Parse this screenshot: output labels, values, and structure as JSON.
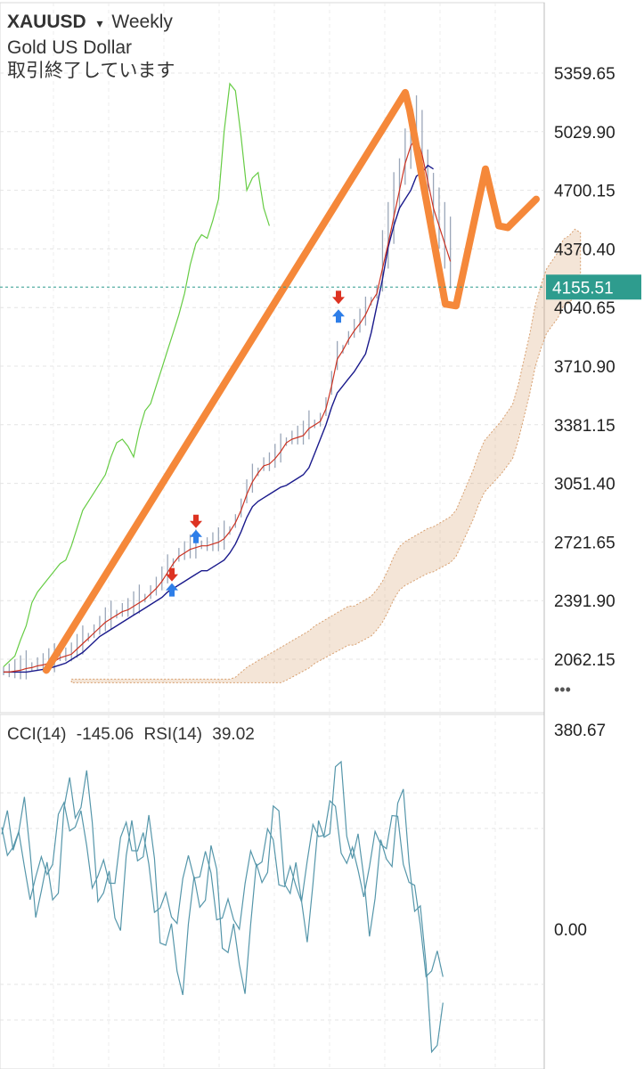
{
  "header": {
    "symbol": "XAUUSD",
    "caret": "▾",
    "timeframe": "Weekly",
    "name": "Gold US Dollar",
    "status": "取引終了しています"
  },
  "indicator_header": {
    "cci_label": "CCI(14)",
    "cci_value": "-145.06",
    "rsi_label": "RSI(14)",
    "rsi_value": "39.02"
  },
  "more_label": "•••",
  "colors": {
    "tenkan": "#cc3322",
    "kijun": "#1a1a8c",
    "chikou": "#66cc44",
    "cloud": "#d8a070",
    "candle": "#9aa6b8",
    "current_price": "#2e9c8e",
    "annotation": "#f5883a",
    "indicator": "#5596aa",
    "arrow_buy": "#2e7ee8",
    "arrow_sell": "#dd3322"
  },
  "chart_data": {
    "type": "line",
    "price_axis": {
      "ticks": [
        "5359.65",
        "5029.90",
        "4700.15",
        "4370.40",
        "4040.65",
        "3710.90",
        "3381.15",
        "3051.40",
        "2721.65",
        "2391.90",
        "2062.15"
      ],
      "current_price": "4155.51",
      "ylim": [
        1930,
        5460
      ]
    },
    "indicator_axis": {
      "ticks": [
        "380.67",
        "0.00"
      ]
    },
    "series": [
      {
        "name": "",
        "role": "tenkan",
        "values": [
          1990,
          1990,
          1995,
          2000,
          2010,
          2015,
          2025,
          2030,
          2040,
          2050,
          2070,
          2080,
          2090,
          2120,
          2150,
          2180,
          2210,
          2240,
          2270,
          2290,
          2310,
          2330,
          2340,
          2360,
          2380,
          2400,
          2430,
          2460,
          2500,
          2550,
          2600,
          2640,
          2660,
          2680,
          2690,
          2700,
          2700,
          2710,
          2720,
          2740,
          2780,
          2830,
          2900,
          2990,
          3060,
          3110,
          3150,
          3160,
          3190,
          3230,
          3280,
          3300,
          3310,
          3320,
          3360,
          3380,
          3400,
          3470,
          3600,
          3750,
          3800,
          3860,
          3910,
          3950,
          4000,
          4070,
          4120,
          4260,
          4400,
          4550,
          4700,
          4850,
          4950,
          5000,
          4900,
          4750,
          4600,
          4500,
          4400,
          4300
        ]
      },
      {
        "name": "",
        "role": "kijun",
        "values": [
          1990,
          1990,
          1990,
          1990,
          1990,
          1995,
          2000,
          2005,
          2010,
          2020,
          2030,
          2040,
          2060,
          2080,
          2100,
          2130,
          2160,
          2190,
          2210,
          2230,
          2250,
          2270,
          2290,
          2310,
          2330,
          2350,
          2370,
          2390,
          2410,
          2440,
          2460,
          2480,
          2500,
          2520,
          2540,
          2560,
          2560,
          2580,
          2600,
          2620,
          2660,
          2710,
          2780,
          2860,
          2920,
          2950,
          2970,
          2990,
          3010,
          3030,
          3040,
          3060,
          3080,
          3100,
          3140,
          3220,
          3300,
          3380,
          3480,
          3560,
          3600,
          3640,
          3680,
          3730,
          3780,
          3900,
          4050,
          4200,
          4380,
          4500,
          4600,
          4650,
          4700,
          4780,
          4800,
          4840,
          4820
        ]
      },
      {
        "name": "",
        "role": "chikou",
        "values": [
          2020,
          2050,
          2080,
          2170,
          2250,
          2380,
          2440,
          2480,
          2520,
          2560,
          2600,
          2620,
          2700,
          2800,
          2900,
          2950,
          3000,
          3050,
          3100,
          3200,
          3280,
          3300,
          3260,
          3200,
          3350,
          3460,
          3500,
          3600,
          3700,
          3800,
          3900,
          4000,
          4120,
          4280,
          4400,
          4450,
          4430,
          4530,
          4650,
          5030,
          5300,
          5260,
          5000,
          4700,
          4770,
          4800,
          4600,
          4500
        ]
      }
    ],
    "annotation": {
      "name": "",
      "path_prices": [
        2000,
        5250,
        5150,
        4060,
        4050,
        4820,
        4500,
        4490,
        4650
      ]
    }
  }
}
